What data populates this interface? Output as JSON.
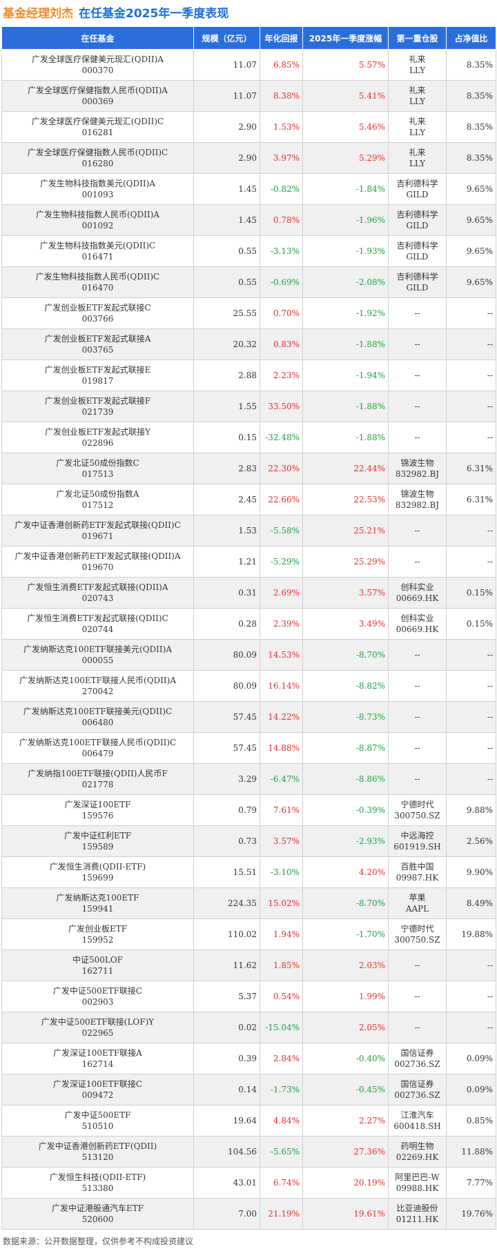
{
  "title": {
    "prefix": "基金经理刘杰",
    "main": "在任基金2025年一季度表现"
  },
  "columns": [
    "在任基金",
    "规模（亿元）",
    "年化回报",
    "2025年一季度涨幅",
    "第一重仓股",
    "占净值比"
  ],
  "rows": [
    {
      "name": "广发全球医疗保健美元现汇(QDII)A",
      "code": "000370",
      "scale": "11.07",
      "annual": "6.85%",
      "q1": "5.57%",
      "stock": "礼来",
      "ticker": "LLY",
      "ratio": "8.35%"
    },
    {
      "name": "广发全球医疗保健指数人民币(QDII)A",
      "code": "000369",
      "scale": "11.07",
      "annual": "8.38%",
      "q1": "5.41%",
      "stock": "礼来",
      "ticker": "LLY",
      "ratio": "8.35%"
    },
    {
      "name": "广发全球医疗保健美元现汇(QDII)C",
      "code": "016281",
      "scale": "2.90",
      "annual": "1.53%",
      "q1": "5.46%",
      "stock": "礼来",
      "ticker": "LLY",
      "ratio": "8.35%"
    },
    {
      "name": "广发全球医疗保健指数人民币(QDII)C",
      "code": "016280",
      "scale": "2.90",
      "annual": "3.97%",
      "q1": "5.29%",
      "stock": "礼来",
      "ticker": "LLY",
      "ratio": "8.35%"
    },
    {
      "name": "广发生物科技指数美元(QDII)A",
      "code": "001093",
      "scale": "1.45",
      "annual": "-0.82%",
      "q1": "-1.84%",
      "stock": "吉利德科学",
      "ticker": "GILD",
      "ratio": "9.65%"
    },
    {
      "name": "广发生物科技指数人民币(QDII)A",
      "code": "001092",
      "scale": "1.45",
      "annual": "0.78%",
      "q1": "-1.96%",
      "stock": "吉利德科学",
      "ticker": "GILD",
      "ratio": "9.65%"
    },
    {
      "name": "广发生物科技指数美元(QDII)C",
      "code": "016471",
      "scale": "0.55",
      "annual": "-3.13%",
      "q1": "-1.93%",
      "stock": "吉利德科学",
      "ticker": "GILD",
      "ratio": "9.65%"
    },
    {
      "name": "广发生物科技指数人民币(QDII)C",
      "code": "016470",
      "scale": "0.55",
      "annual": "-0.69%",
      "q1": "-2.08%",
      "stock": "吉利德科学",
      "ticker": "GILD",
      "ratio": "9.65%"
    },
    {
      "name": "广发创业板ETF发起式联接C",
      "code": "003766",
      "scale": "25.55",
      "annual": "0.70%",
      "q1": "-1.92%",
      "stock": "--",
      "ticker": "",
      "ratio": "--"
    },
    {
      "name": "广发创业板ETF发起式联接A",
      "code": "003765",
      "scale": "20.32",
      "annual": "0.83%",
      "q1": "-1.88%",
      "stock": "--",
      "ticker": "",
      "ratio": "--"
    },
    {
      "name": "广发创业板ETF发起式联接E",
      "code": "019817",
      "scale": "2.88",
      "annual": "2.23%",
      "q1": "-1.94%",
      "stock": "--",
      "ticker": "",
      "ratio": "--"
    },
    {
      "name": "广发创业板ETF发起式联接F",
      "code": "021739",
      "scale": "1.55",
      "annual": "33.50%",
      "q1": "-1.88%",
      "stock": "--",
      "ticker": "",
      "ratio": "--"
    },
    {
      "name": "广发创业板ETF发起式联接Y",
      "code": "022896",
      "scale": "0.15",
      "annual": "-32.48%",
      "q1": "-1.88%",
      "stock": "--",
      "ticker": "",
      "ratio": "--"
    },
    {
      "name": "广发北证50成份指数C",
      "code": "017513",
      "scale": "2.83",
      "annual": "22.30%",
      "q1": "22.44%",
      "stock": "锦波生物",
      "ticker": "832982.BJ",
      "ratio": "6.31%"
    },
    {
      "name": "广发北证50成份指数A",
      "code": "017512",
      "scale": "2.45",
      "annual": "22.66%",
      "q1": "22.53%",
      "stock": "锦波生物",
      "ticker": "832982.BJ",
      "ratio": "6.31%"
    },
    {
      "name": "广发中证香港创新药ETF发起式联接(QDII)C",
      "code": "019671",
      "scale": "1.53",
      "annual": "-5.58%",
      "q1": "25.21%",
      "stock": "--",
      "ticker": "",
      "ratio": "--"
    },
    {
      "name": "广发中证香港创新药ETF发起式联接(QDII)A",
      "code": "019670",
      "scale": "1.21",
      "annual": "-5.29%",
      "q1": "25.29%",
      "stock": "--",
      "ticker": "",
      "ratio": "--"
    },
    {
      "name": "广发恒生消费ETF发起式联接(QDII)A",
      "code": "020743",
      "scale": "0.31",
      "annual": "2.69%",
      "q1": "3.57%",
      "stock": "创科实业",
      "ticker": "00669.HK",
      "ratio": "0.15%"
    },
    {
      "name": "广发恒生消费ETF发起式联接(QDII)C",
      "code": "020744",
      "scale": "0.28",
      "annual": "2.39%",
      "q1": "3.49%",
      "stock": "创科实业",
      "ticker": "00669.HK",
      "ratio": "0.15%"
    },
    {
      "name": "广发纳斯达克100ETF联接美元(QDII)A",
      "code": "000055",
      "scale": "80.09",
      "annual": "14.53%",
      "q1": "-8.70%",
      "stock": "--",
      "ticker": "",
      "ratio": "--"
    },
    {
      "name": "广发纳斯达克100ETF联接人民币(QDII)A",
      "code": "270042",
      "scale": "80.09",
      "annual": "16.14%",
      "q1": "-8.82%",
      "stock": "--",
      "ticker": "",
      "ratio": "--"
    },
    {
      "name": "广发纳斯达克100ETF联接美元(QDII)C",
      "code": "006480",
      "scale": "57.45",
      "annual": "14.22%",
      "q1": "-8.73%",
      "stock": "--",
      "ticker": "",
      "ratio": "--"
    },
    {
      "name": "广发纳斯达克100ETF联接人民币(QDII)C",
      "code": "006479",
      "scale": "57.45",
      "annual": "14.88%",
      "q1": "-8.87%",
      "stock": "--",
      "ticker": "",
      "ratio": "--"
    },
    {
      "name": "广发纳指100ETF联接(QDII)人民币F",
      "code": "021778",
      "scale": "3.29",
      "annual": "-6.47%",
      "q1": "-8.86%",
      "stock": "--",
      "ticker": "",
      "ratio": "--"
    },
    {
      "name": "广发深证100ETF",
      "code": "159576",
      "scale": "0.79",
      "annual": "7.61%",
      "q1": "-0.39%",
      "stock": "宁德时代",
      "ticker": "300750.SZ",
      "ratio": "9.88%"
    },
    {
      "name": "广发中证红利ETF",
      "code": "159589",
      "scale": "0.73",
      "annual": "3.57%",
      "q1": "-2.93%",
      "stock": "中远海控",
      "ticker": "601919.SH",
      "ratio": "2.56%"
    },
    {
      "name": "广发恒生消费(QDII-ETF)",
      "code": "159699",
      "scale": "15.51",
      "annual": "-3.10%",
      "q1": "4.20%",
      "stock": "百胜中国",
      "ticker": "09987.HK",
      "ratio": "9.90%"
    },
    {
      "name": "广发纳斯达克100ETF",
      "code": "159941",
      "scale": "224.35",
      "annual": "15.02%",
      "q1": "-8.70%",
      "stock": "苹果",
      "ticker": "AAPL",
      "ratio": "8.49%"
    },
    {
      "name": "广发创业板ETF",
      "code": "159952",
      "scale": "110.02",
      "annual": "1.94%",
      "q1": "-1.70%",
      "stock": "宁德时代",
      "ticker": "300750.SZ",
      "ratio": "19.88%"
    },
    {
      "name": "中证500LOF",
      "code": "162711",
      "scale": "11.62",
      "annual": "1.85%",
      "q1": "2.03%",
      "stock": "--",
      "ticker": "",
      "ratio": "--"
    },
    {
      "name": "广发中证500ETF联接C",
      "code": "002903",
      "scale": "5.37",
      "annual": "0.54%",
      "q1": "1.99%",
      "stock": "--",
      "ticker": "",
      "ratio": "--"
    },
    {
      "name": "广发中证500ETF联接(LOF)Y",
      "code": "022965",
      "scale": "0.02",
      "annual": "-15.04%",
      "q1": "2.05%",
      "stock": "--",
      "ticker": "",
      "ratio": "--"
    },
    {
      "name": "广发深证100ETF联接A",
      "code": "162714",
      "scale": "0.39",
      "annual": "2.84%",
      "q1": "-0.40%",
      "stock": "国信证券",
      "ticker": "002736.SZ",
      "ratio": "0.09%"
    },
    {
      "name": "广发深证100ETF联接C",
      "code": "009472",
      "scale": "0.14",
      "annual": "-1.73%",
      "q1": "-0.45%",
      "stock": "国信证券",
      "ticker": "002736.SZ",
      "ratio": "0.09%"
    },
    {
      "name": "广发中证500ETF",
      "code": "510510",
      "scale": "19.64",
      "annual": "4.84%",
      "q1": "2.27%",
      "stock": "江淮汽车",
      "ticker": "600418.SH",
      "ratio": "0.85%"
    },
    {
      "name": "广发中证香港创新药ETF(QDII)",
      "code": "513120",
      "scale": "104.56",
      "annual": "-5.65%",
      "q1": "27.36%",
      "stock": "药明生物",
      "ticker": "02269.HK",
      "ratio": "11.88%"
    },
    {
      "name": "广发恒生科技(QDII-ETF)",
      "code": "513380",
      "scale": "43.01",
      "annual": "6.74%",
      "q1": "20.19%",
      "stock": "阿里巴巴-W",
      "ticker": "09988.HK",
      "ratio": "7.77%"
    },
    {
      "name": "广发中证港股通汽车ETF",
      "code": "520600",
      "scale": "7.00",
      "annual": "21.19%",
      "q1": "19.61%",
      "stock": "比亚迪股份",
      "ticker": "01211.HK",
      "ratio": "19.76%"
    }
  ],
  "footer": "数据来源：公开数据整理，仅供参考不构成投资建议",
  "colors": {
    "positive": "#e0302c",
    "negative": "#1e9e3e",
    "header_bg": "#2a6edb",
    "title_orange": "#f08a2c",
    "title_blue": "#1d6fd6"
  }
}
